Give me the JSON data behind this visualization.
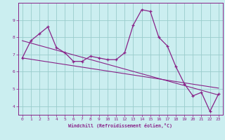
{
  "xlabel": "Windchill (Refroidissement éolien,°C)",
  "background_color": "#cbeef0",
  "grid_color": "#99cccc",
  "line_color": "#882288",
  "xlim": [
    -0.5,
    23.5
  ],
  "ylim": [
    3.5,
    10.0
  ],
  "xticks": [
    0,
    1,
    2,
    3,
    4,
    5,
    6,
    7,
    8,
    9,
    10,
    11,
    12,
    13,
    14,
    15,
    16,
    17,
    18,
    19,
    20,
    21,
    22,
    23
  ],
  "yticks": [
    4,
    5,
    6,
    7,
    8,
    9
  ],
  "hours": [
    0,
    1,
    2,
    3,
    4,
    5,
    6,
    7,
    8,
    9,
    10,
    11,
    12,
    13,
    14,
    15,
    16,
    17,
    18,
    19,
    20,
    21,
    22,
    23
  ],
  "curve_main": [
    6.8,
    7.8,
    8.2,
    8.6,
    7.4,
    7.1,
    6.6,
    6.6,
    6.9,
    6.8,
    6.7,
    6.7,
    7.1,
    8.7,
    9.6,
    9.5,
    8.0,
    7.5,
    6.3,
    5.3,
    4.6,
    4.8,
    3.7,
    4.7
  ],
  "line1_start": 7.8,
  "line1_end": 4.65,
  "line2_start": 6.8,
  "line2_end": 5.05
}
